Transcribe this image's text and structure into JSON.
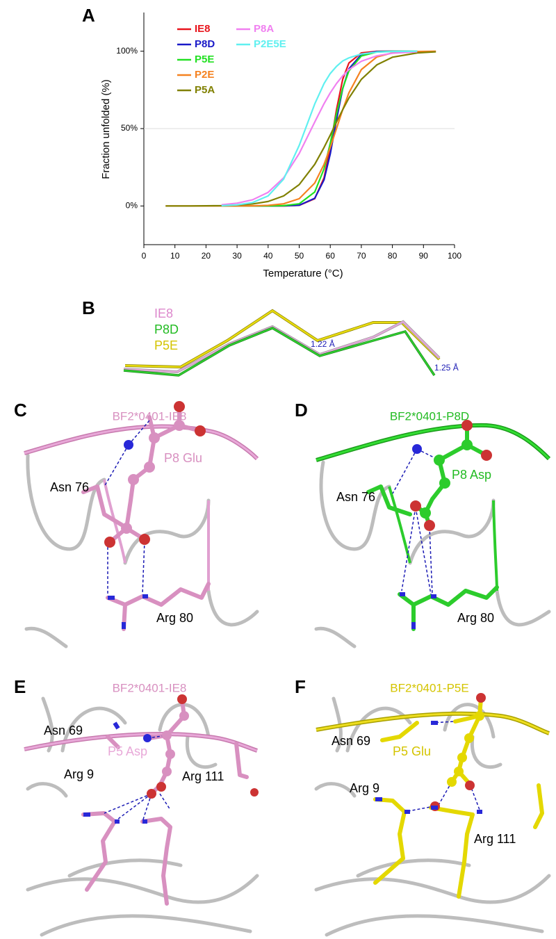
{
  "chart_data": {
    "type": "line",
    "xlabel": "Temperature (°C)",
    "ylabel": "Fraction unfolded (%)",
    "x": [
      7,
      15,
      25,
      30,
      35,
      40,
      45,
      50,
      55,
      58,
      60,
      62,
      64,
      66,
      70,
      75,
      80,
      88,
      94
    ],
    "series": [
      {
        "name": "IE8",
        "color": "#e8141c",
        "values": [
          null,
          null,
          0,
          0,
          0,
          0,
          0,
          0.4,
          4.7,
          18.2,
          37.8,
          62.2,
          81.8,
          92.4,
          98.9,
          99.9,
          100,
          100,
          null
        ]
      },
      {
        "name": "P8D",
        "color": "#1a1ac8",
        "values": [
          null,
          null,
          0,
          0,
          0,
          0,
          0.1,
          0.5,
          5.0,
          16.9,
          33.6,
          55.6,
          75.7,
          88.6,
          97.9,
          99.8,
          100,
          100,
          null
        ]
      },
      {
        "name": "P5E",
        "color": "#22e022",
        "values": [
          null,
          null,
          0,
          0,
          0,
          0,
          0.2,
          1.4,
          9.0,
          24.0,
          40.5,
          59.5,
          76.0,
          87.3,
          96.9,
          99.5,
          99.9,
          100,
          null
        ]
      },
      {
        "name": "P2E",
        "color": "#f58220",
        "values": [
          0,
          0,
          0,
          0,
          0.1,
          0.4,
          1.4,
          4.7,
          14.8,
          26.9,
          37.8,
          50,
          62.2,
          73.1,
          88.1,
          96.3,
          98.9,
          99.8,
          100
        ]
      },
      {
        "name": "P5A",
        "color": "#808000",
        "values": [
          0,
          0,
          0.2,
          0.6,
          1.3,
          2.9,
          6.5,
          13.8,
          26.9,
          37.8,
          45.8,
          54.2,
          62.2,
          69.7,
          81.8,
          91.2,
          96.1,
          98.9,
          99.6
        ]
      },
      {
        "name": "P8A",
        "color": "#f080f0",
        "values": [
          null,
          null,
          0.8,
          1.8,
          4.0,
          8.8,
          18.2,
          33.9,
          54.2,
          66.1,
          73.1,
          79.1,
          84.1,
          88.1,
          93.5,
          97.0,
          98.7,
          99.6,
          null
        ]
      },
      {
        "name": "P2E5E",
        "color": "#60f0f0",
        "values": [
          null,
          null,
          0.2,
          0.7,
          2.2,
          6.5,
          17.4,
          39.1,
          65.9,
          79.1,
          85.6,
          90.2,
          93.7,
          95.7,
          98.2,
          99.4,
          99.8,
          100,
          null
        ]
      }
    ],
    "xlim": [
      0,
      100
    ],
    "xticks": [
      0,
      10,
      20,
      30,
      40,
      50,
      60,
      70,
      80,
      90,
      100
    ],
    "ylim": [
      -25,
      125
    ],
    "yticks": [
      {
        "value": 0,
        "label": "0%"
      },
      {
        "value": 50,
        "label": "50%"
      },
      {
        "value": 100,
        "label": "100%"
      }
    ],
    "hline": 50
  },
  "panel_labels": [
    "A",
    "B",
    "C",
    "D",
    "E",
    "F"
  ],
  "panel_b": {
    "legend": [
      "IE8",
      "P8D",
      "P5E"
    ],
    "annotations": [
      "1.22 Å",
      "1.25 Å"
    ]
  },
  "panel_c": {
    "title": "BF2*0401-IE8",
    "labels": [
      "Asn 76",
      "P8 Glu",
      "Arg 80"
    ]
  },
  "panel_d": {
    "title": "BF2*0401-P8D",
    "labels": [
      "Asn 76",
      "P8 Asp",
      "Arg 80"
    ]
  },
  "panel_e": {
    "title": "BF2*0401-IE8",
    "labels": [
      "Asn 69",
      "P5 Asp",
      "Arg 9",
      "Arg 111"
    ]
  },
  "panel_f": {
    "title": "BF2*0401-P5E",
    "labels": [
      "Asn 69",
      "P5 Glu",
      "Arg 9",
      "Arg 111"
    ]
  }
}
